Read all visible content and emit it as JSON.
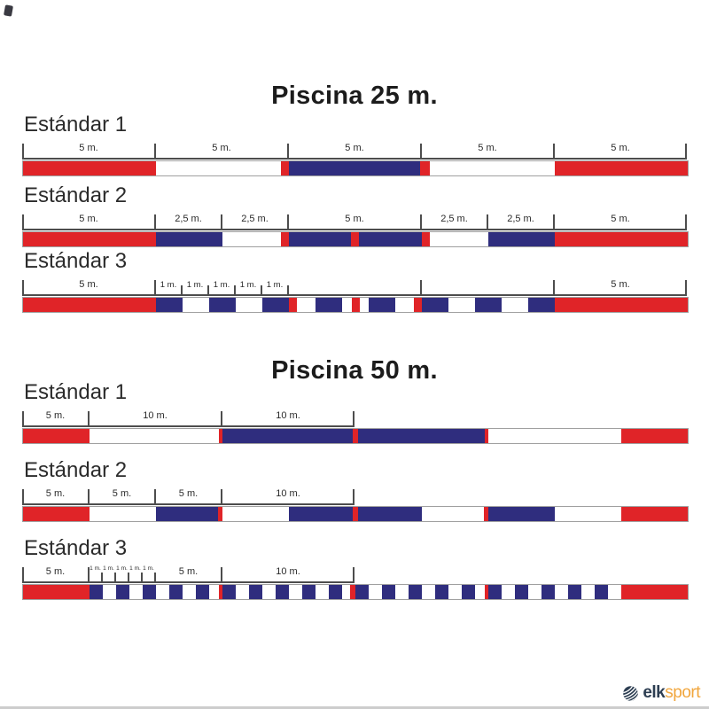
{
  "colors": {
    "red": "#e02428",
    "blue": "#2f2d7e",
    "white": "#ffffff",
    "ruler": "#4d4d4d",
    "text": "#2b2b2b",
    "bar_border": "#a0a0a0",
    "footer_line": "#cdcdcd",
    "logo_navy": "#2d3e52",
    "logo_orange": "#f1a63d"
  },
  "logo": {
    "icon": "globe-icon",
    "brand_left": "elk",
    "brand_right": "sport"
  },
  "sections": [
    {
      "title": "Piscina 25 m.",
      "total_m": 25,
      "rows": [
        {
          "label": "Estándar 1",
          "ruler": {
            "span_m": 25,
            "ticks": [
              {
                "m": 0
              },
              {
                "m": 5
              },
              {
                "m": 10
              },
              {
                "m": 15
              },
              {
                "m": 20
              },
              {
                "m": 25
              }
            ],
            "labels": [
              {
                "text": "5 m.",
                "m": 2.5
              },
              {
                "text": "5 m.",
                "m": 7.5
              },
              {
                "text": "5 m.",
                "m": 12.5
              },
              {
                "text": "5 m.",
                "m": 17.5
              },
              {
                "text": "5 m.",
                "m": 22.5
              }
            ]
          },
          "segments": [
            [
              "red",
              5
            ],
            [
              "white",
              4.7
            ],
            [
              "red",
              0.3
            ],
            [
              "blue",
              4.95
            ],
            [
              "red",
              0.35
            ],
            [
              "white",
              4.7
            ],
            [
              "red",
              5
            ]
          ]
        },
        {
          "label": "Estándar 2",
          "ruler": {
            "span_m": 25,
            "ticks": [
              {
                "m": 0
              },
              {
                "m": 5
              },
              {
                "m": 7.5
              },
              {
                "m": 10
              },
              {
                "m": 15
              },
              {
                "m": 17.5
              },
              {
                "m": 20
              },
              {
                "m": 25
              }
            ],
            "labels": [
              {
                "text": "5 m.",
                "m": 2.5
              },
              {
                "text": "2,5 m.",
                "m": 6.25
              },
              {
                "text": "2,5 m.",
                "m": 8.75
              },
              {
                "text": "5 m.",
                "m": 12.5
              },
              {
                "text": "2,5 m.",
                "m": 16.25
              },
              {
                "text": "2,5 m.",
                "m": 18.75
              },
              {
                "text": "5 m.",
                "m": 22.5
              }
            ]
          },
          "segments": [
            [
              "red",
              5
            ],
            [
              "blue",
              2.5
            ],
            [
              "white",
              2.2
            ],
            [
              "red",
              0.3
            ],
            [
              "blue",
              2.35
            ],
            [
              "red",
              0.3
            ],
            [
              "blue",
              2.35
            ],
            [
              "red",
              0.3
            ],
            [
              "white",
              2.2
            ],
            [
              "blue",
              2.5
            ],
            [
              "red",
              5
            ]
          ]
        },
        {
          "label": "Estándar 3",
          "ruler": {
            "span_m": 25,
            "ticks": [
              {
                "m": 0
              },
              {
                "m": 5
              },
              {
                "m": 6,
                "short": true
              },
              {
                "m": 7,
                "short": true
              },
              {
                "m": 8,
                "short": true
              },
              {
                "m": 9,
                "short": true
              },
              {
                "m": 10,
                "short": true
              },
              {
                "m": 15
              },
              {
                "m": 20
              },
              {
                "m": 25
              }
            ],
            "labels": [
              {
                "text": "5 m.",
                "m": 2.5
              },
              {
                "text": "1 m.",
                "m": 5.5,
                "size": "small"
              },
              {
                "text": "1 m.",
                "m": 6.5,
                "size": "small"
              },
              {
                "text": "1 m.",
                "m": 7.5,
                "size": "small"
              },
              {
                "text": "1 m.",
                "m": 8.5,
                "size": "small"
              },
              {
                "text": "1 m.",
                "m": 9.5,
                "size": "small"
              },
              {
                "text": "5 m.",
                "m": 22.5
              }
            ]
          },
          "segments": [
            [
              "red",
              5
            ],
            [
              "blue",
              1
            ],
            [
              "white",
              1
            ],
            [
              "blue",
              1
            ],
            [
              "white",
              1
            ],
            [
              "blue",
              1
            ],
            [
              "red",
              0.3
            ],
            [
              "white",
              0.7
            ],
            [
              "blue",
              1
            ],
            [
              "white",
              0.35
            ],
            [
              "red",
              0.3
            ],
            [
              "white",
              0.35
            ],
            [
              "blue",
              1
            ],
            [
              "white",
              0.7
            ],
            [
              "red",
              0.3
            ],
            [
              "blue",
              1
            ],
            [
              "white",
              1
            ],
            [
              "blue",
              1
            ],
            [
              "white",
              1
            ],
            [
              "blue",
              1
            ],
            [
              "red",
              5
            ]
          ]
        }
      ]
    },
    {
      "title": "Piscina 50 m.",
      "total_m": 50,
      "rows": [
        {
          "label": "Estándar 1",
          "ruler": {
            "span_m": 25,
            "ticks": [
              {
                "m": 0
              },
              {
                "m": 5
              },
              {
                "m": 15
              },
              {
                "m": 25
              }
            ],
            "labels": [
              {
                "text": "5 m.",
                "m": 2.5
              },
              {
                "text": "10 m.",
                "m": 10
              },
              {
                "text": "10 m.",
                "m": 20
              }
            ]
          },
          "segments": [
            [
              "red",
              5
            ],
            [
              "white",
              9.7
            ],
            [
              "red",
              0.3
            ],
            [
              "blue",
              9.8
            ],
            [
              "red",
              0.4
            ],
            [
              "blue",
              9.5
            ],
            [
              "red",
              0.3
            ],
            [
              "white",
              10
            ],
            [
              "red",
              5
            ]
          ]
        },
        {
          "label": "Estándar 2",
          "ruler": {
            "span_m": 25,
            "ticks": [
              {
                "m": 0
              },
              {
                "m": 5
              },
              {
                "m": 10
              },
              {
                "m": 15
              },
              {
                "m": 25
              }
            ],
            "labels": [
              {
                "text": "5 m.",
                "m": 2.5
              },
              {
                "text": "5 m.",
                "m": 7.5
              },
              {
                "text": "5 m.",
                "m": 12.5
              },
              {
                "text": "10 m.",
                "m": 20
              }
            ]
          },
          "segments": [
            [
              "red",
              5
            ],
            [
              "white",
              5
            ],
            [
              "blue",
              4.7
            ],
            [
              "red",
              0.3
            ],
            [
              "white",
              5
            ],
            [
              "blue",
              4.8
            ],
            [
              "red",
              0.4
            ],
            [
              "blue",
              4.8
            ],
            [
              "white",
              4.7
            ],
            [
              "red",
              0.3
            ],
            [
              "blue",
              5
            ],
            [
              "white",
              5
            ],
            [
              "red",
              5
            ]
          ]
        },
        {
          "label": "Estándar 3",
          "ruler": {
            "span_m": 25,
            "ticks": [
              {
                "m": 0
              },
              {
                "m": 5
              },
              {
                "m": 6,
                "short": true
              },
              {
                "m": 7,
                "short": true
              },
              {
                "m": 8,
                "short": true
              },
              {
                "m": 9,
                "short": true
              },
              {
                "m": 10,
                "short": true
              },
              {
                "m": 15
              },
              {
                "m": 25
              }
            ],
            "labels": [
              {
                "text": "5 m.",
                "m": 2.5
              },
              {
                "text": "1 m.",
                "m": 5.5,
                "size": "tiny"
              },
              {
                "text": "1 m.",
                "m": 6.5,
                "size": "tiny"
              },
              {
                "text": "1 m.",
                "m": 7.5,
                "size": "tiny"
              },
              {
                "text": "1 m.",
                "m": 8.5,
                "size": "tiny"
              },
              {
                "text": "1 m.",
                "m": 9.5,
                "size": "tiny"
              },
              {
                "text": "5 m.",
                "m": 12.5
              },
              {
                "text": "10 m.",
                "m": 20
              }
            ]
          },
          "segments": [
            [
              "red",
              5
            ],
            [
              "blue",
              1
            ],
            [
              "white",
              1
            ],
            [
              "blue",
              1
            ],
            [
              "white",
              1
            ],
            [
              "blue",
              1
            ],
            [
              "white",
              1
            ],
            [
              "blue",
              1
            ],
            [
              "white",
              1
            ],
            [
              "blue",
              1
            ],
            [
              "white",
              0.7
            ],
            [
              "red",
              0.3
            ],
            [
              "blue",
              1
            ],
            [
              "white",
              1
            ],
            [
              "blue",
              1
            ],
            [
              "white",
              1
            ],
            [
              "blue",
              1
            ],
            [
              "white",
              1
            ],
            [
              "blue",
              1
            ],
            [
              "white",
              1
            ],
            [
              "blue",
              1
            ],
            [
              "white",
              0.6
            ],
            [
              "red",
              0.4
            ],
            [
              "blue",
              1
            ],
            [
              "white",
              1
            ],
            [
              "blue",
              1
            ],
            [
              "white",
              1
            ],
            [
              "blue",
              1
            ],
            [
              "white",
              1
            ],
            [
              "blue",
              1
            ],
            [
              "white",
              1
            ],
            [
              "blue",
              1
            ],
            [
              "white",
              0.7
            ],
            [
              "red",
              0.3
            ],
            [
              "blue",
              1
            ],
            [
              "white",
              1
            ],
            [
              "blue",
              1
            ],
            [
              "white",
              1
            ],
            [
              "blue",
              1
            ],
            [
              "white",
              1
            ],
            [
              "blue",
              1
            ],
            [
              "white",
              1
            ],
            [
              "blue",
              1
            ],
            [
              "white",
              1
            ],
            [
              "red",
              5
            ]
          ]
        }
      ]
    }
  ]
}
